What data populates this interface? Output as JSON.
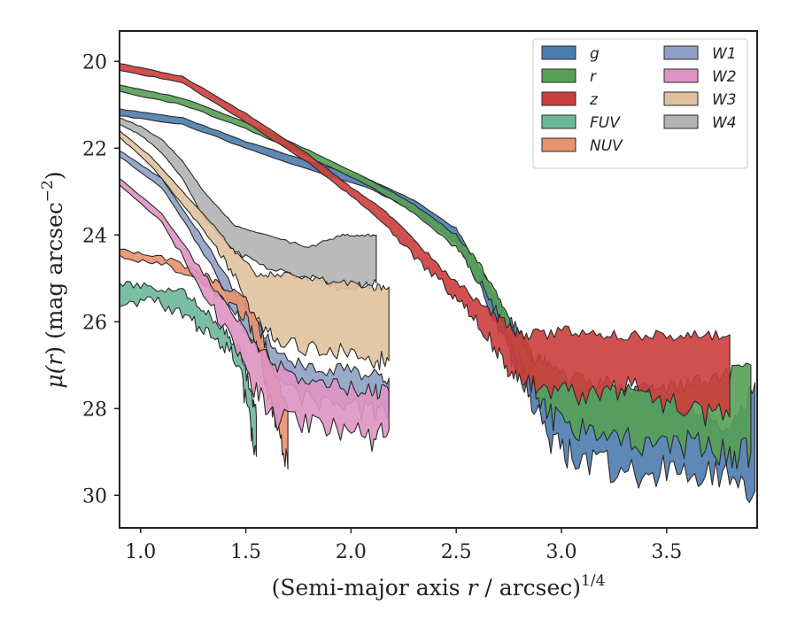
{
  "chart_data": {
    "type": "area",
    "xlabel_main": "(Semi-major axis ",
    "xlabel_var": "r",
    "xlabel_mid": " / arcsec)",
    "xlabel_sup": "1/4",
    "ylabel_main": "μ(",
    "ylabel_var": "r",
    "ylabel_rest": ") (mag arcsec",
    "ylabel_sup": "−2",
    "ylabel_close": ")",
    "xlim": [
      0.9,
      3.93
    ],
    "ylim": [
      30.75,
      19.3
    ],
    "y_inverted": true,
    "x_ticks": [
      1.0,
      1.5,
      2.0,
      2.5,
      3.0,
      3.5
    ],
    "x_tick_labels": [
      "1.0",
      "1.5",
      "2.0",
      "2.5",
      "3.0",
      "3.5"
    ],
    "y_ticks": [
      20,
      22,
      24,
      26,
      28,
      30
    ],
    "y_tick_labels": [
      "20",
      "22",
      "24",
      "26",
      "28",
      "30"
    ],
    "legend_position": "top-right",
    "legend_columns": 2,
    "series": [
      {
        "name": "g",
        "color": "#4c7bad",
        "x": [
          0.9,
          1.2,
          1.5,
          1.8,
          2.1,
          2.3,
          2.5,
          2.6,
          2.7,
          2.78,
          2.86,
          2.95,
          3.05,
          3.2,
          3.35,
          3.5,
          3.65,
          3.8,
          3.92
        ],
        "yu": [
          21.1,
          21.3,
          21.85,
          22.3,
          22.75,
          23.2,
          23.85,
          24.65,
          25.55,
          26.1,
          26.75,
          27.2,
          27.55,
          27.6,
          27.6,
          27.6,
          28.0,
          28.6,
          27.4
        ],
        "yl": [
          21.25,
          21.45,
          22.0,
          22.5,
          22.95,
          23.45,
          24.2,
          25.1,
          26.2,
          27.0,
          27.8,
          28.7,
          29.1,
          29.3,
          29.6,
          29.4,
          29.5,
          29.6,
          29.9
        ]
      },
      {
        "name": "r",
        "color": "#55a055",
        "x": [
          0.9,
          1.2,
          1.5,
          1.8,
          2.1,
          2.3,
          2.5,
          2.6,
          2.7,
          2.78,
          2.86,
          2.95,
          3.05,
          3.2,
          3.35,
          3.5,
          3.65,
          3.8,
          3.9
        ],
        "yu": [
          20.55,
          20.85,
          21.4,
          22.05,
          22.75,
          23.3,
          24.0,
          24.6,
          25.4,
          26.2,
          26.8,
          27.0,
          27.3,
          27.4,
          27.6,
          27.5,
          27.4,
          27.2,
          27.0
        ],
        "yl": [
          20.7,
          21.0,
          21.55,
          22.2,
          22.9,
          23.5,
          24.3,
          25.0,
          25.8,
          26.7,
          27.5,
          28.2,
          28.5,
          28.6,
          28.8,
          28.7,
          28.9,
          29.1,
          29.0
        ]
      },
      {
        "name": "z",
        "color": "#cc3d3d",
        "x": [
          0.9,
          1.2,
          1.5,
          1.8,
          2.0,
          2.15,
          2.3,
          2.45,
          2.55,
          2.65,
          2.72,
          2.8,
          2.9,
          3.05,
          3.2,
          3.35,
          3.5,
          3.65,
          3.8
        ],
        "yu": [
          20.05,
          20.35,
          21.2,
          22.15,
          22.9,
          23.4,
          24.1,
          24.9,
          25.3,
          25.7,
          26.0,
          26.3,
          26.3,
          26.2,
          26.3,
          26.3,
          26.3,
          26.3,
          26.3
        ],
        "yl": [
          20.2,
          20.5,
          21.4,
          22.35,
          23.1,
          23.7,
          24.5,
          25.2,
          25.7,
          26.3,
          26.9,
          27.3,
          27.5,
          27.7,
          27.6,
          27.5,
          27.9,
          28.1,
          28.2
        ]
      },
      {
        "name": "FUV",
        "color": "#6bb89a",
        "x": [
          0.9,
          1.05,
          1.2,
          1.3,
          1.4,
          1.47,
          1.52,
          1.55
        ],
        "yu": [
          25.1,
          25.2,
          25.3,
          25.7,
          26.2,
          26.6,
          27.5,
          28.2
        ],
        "yl": [
          25.6,
          25.5,
          25.8,
          26.2,
          26.6,
          27.0,
          28.4,
          29.1
        ]
      },
      {
        "name": "NUV",
        "color": "#e8916f",
        "x": [
          0.9,
          1.1,
          1.3,
          1.4,
          1.5,
          1.55,
          1.6,
          1.66,
          1.7
        ],
        "yu": [
          24.35,
          24.5,
          24.9,
          25.2,
          25.5,
          26.0,
          26.6,
          27.5,
          28.0
        ],
        "yl": [
          24.5,
          24.65,
          25.1,
          25.5,
          25.9,
          26.5,
          27.5,
          28.5,
          29.4
        ]
      },
      {
        "name": "W1",
        "color": "#8da0c4",
        "x": [
          0.9,
          1.1,
          1.3,
          1.45,
          1.55,
          1.65,
          1.8,
          1.95,
          2.1,
          2.18
        ],
        "yu": [
          22.05,
          22.7,
          24.1,
          25.3,
          26.0,
          26.7,
          27.1,
          27.1,
          27.2,
          27.3
        ],
        "yl": [
          22.2,
          22.9,
          24.4,
          25.8,
          26.6,
          27.3,
          27.8,
          27.9,
          28.1,
          28.0
        ]
      },
      {
        "name": "W2",
        "color": "#de93c2",
        "x": [
          0.9,
          1.1,
          1.3,
          1.45,
          1.55,
          1.65,
          1.8,
          1.95,
          2.1,
          2.18
        ],
        "yu": [
          22.7,
          23.5,
          24.9,
          25.9,
          26.5,
          27.0,
          27.4,
          27.5,
          27.6,
          27.6
        ],
        "yl": [
          22.85,
          23.7,
          25.3,
          26.6,
          27.6,
          28.3,
          28.3,
          28.6,
          28.7,
          28.5
        ]
      },
      {
        "name": "W3",
        "color": "#dfc29c",
        "x": [
          0.9,
          1.05,
          1.2,
          1.35,
          1.45,
          1.55,
          1.65,
          1.8,
          1.95,
          2.1,
          2.18
        ],
        "yu": [
          21.6,
          22.2,
          23.0,
          23.8,
          24.4,
          24.9,
          24.9,
          25.0,
          25.1,
          25.2,
          25.2
        ],
        "yl": [
          21.75,
          22.4,
          23.3,
          24.2,
          25.0,
          26.0,
          26.5,
          26.6,
          26.7,
          26.9,
          26.9
        ]
      },
      {
        "name": "W4",
        "color": "#b3b3b3",
        "x": [
          0.9,
          1.0,
          1.1,
          1.2,
          1.3,
          1.45,
          1.6,
          1.8,
          1.95,
          2.05,
          2.12
        ],
        "yu": [
          21.3,
          21.5,
          21.8,
          22.3,
          23.0,
          23.8,
          24.0,
          24.3,
          24.0,
          24.0,
          24.0
        ],
        "yl": [
          21.45,
          21.7,
          22.1,
          22.7,
          23.6,
          24.4,
          24.8,
          25.0,
          25.2,
          25.2,
          25.1
        ]
      }
    ]
  }
}
